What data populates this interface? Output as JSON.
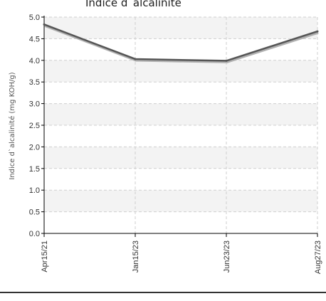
{
  "chart_data": {
    "type": "line",
    "title": "Indice d`alcalinité",
    "ylabel": "Indice d`alcalinité (mg KOH/g)",
    "xlabel": "",
    "categories": [
      "Apr15/21",
      "Jan15/23",
      "Jun23/23",
      "Aug27/23"
    ],
    "series": [
      {
        "values": [
          4.83,
          4.03,
          3.99,
          4.67
        ]
      }
    ],
    "ylim": [
      0,
      5
    ],
    "yticks": [
      "0.0",
      "0.5",
      "1.0",
      "1.5",
      "2.0",
      "2.5",
      "3.0",
      "3.5",
      "4.0",
      "4.5",
      "5.0"
    ],
    "grid": true,
    "legend": "none",
    "colors": {
      "line": "#555555",
      "line_shadow": "#b0b0b0",
      "band": "#f3f3f3",
      "grid": "#cfcfcf",
      "axis": "#000000",
      "text": "#333333"
    }
  }
}
